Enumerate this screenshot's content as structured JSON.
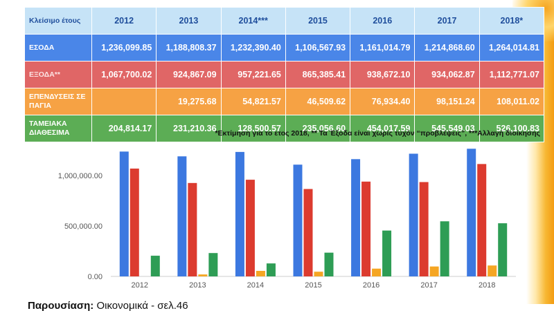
{
  "table": {
    "header_label": "Κλείσιμο έτους",
    "years": [
      "2012",
      "2013",
      "2014***",
      "2015",
      "2016",
      "2017",
      "2018*"
    ],
    "rows": [
      {
        "label": "ΕΣΟΔΑ",
        "values": [
          "1,236,099.85",
          "1,188,808.37",
          "1,232,390.40",
          "1,106,567.93",
          "1,161,014.79",
          "1,214,868.60",
          "1,264,014.81"
        ]
      },
      {
        "label": "ΕΞΟΔΑ**",
        "values": [
          "1,067,700.02",
          "924,867.09",
          "957,221.65",
          "865,385.41",
          "938,672.10",
          "934,062.87",
          "1,112,771.07"
        ]
      },
      {
        "label": "ΕΠΕΝΔΥΣΕΙΣ ΣΕ ΠΑΓΙΑ",
        "values": [
          "",
          "19,275.68",
          "54,821.57",
          "46,509.62",
          "76,934.40",
          "98,151.24",
          "108,011.02"
        ]
      },
      {
        "label": "ΤΑΜΕΙΑΚΑ ΔΙΑΘΕΣΙΜΑ",
        "values": [
          "204,814.17",
          "231,210.36",
          "128,500.57",
          "235,056.60",
          "454,017.59",
          "545,549.03",
          "526,100.83"
        ]
      }
    ]
  },
  "note": "*Εκτίμηση για το ετος 2018,  ** Τα Έξοδα είναι χωρίς τυχόν “προβλέψεις”, ***Αλλαγή διοίκησης",
  "footer": {
    "bold": "Παρουσίαση:",
    "rest": " Οικονομικά - σελ.46"
  },
  "colors": {
    "series1": "#3c78e0",
    "series2": "#dc3b2f",
    "series3": "#f5a623",
    "series4": "#2e9d55"
  },
  "chart_data": {
    "type": "bar",
    "categories": [
      "2012",
      "2013",
      "2014",
      "2015",
      "2016",
      "2017",
      "2018"
    ],
    "ytick_labels": [
      "0.00",
      "500,000.00",
      "1,000,000.00"
    ],
    "ylim": [
      0,
      1300000
    ],
    "series": [
      {
        "values": [
          1236099.85,
          1188808.37,
          1232390.4,
          1106567.93,
          1161014.79,
          1214868.6,
          1264014.81
        ]
      },
      {
        "values": [
          1067700.02,
          924867.09,
          957221.65,
          865385.41,
          938672.1,
          934062.87,
          1112771.07
        ]
      },
      {
        "values": [
          0,
          19275.68,
          54821.57,
          46509.62,
          76934.4,
          98151.24,
          108011.02
        ]
      },
      {
        "values": [
          204814.17,
          231210.36,
          128500.57,
          235056.6,
          454017.59,
          545549.03,
          526100.83
        ]
      }
    ]
  }
}
